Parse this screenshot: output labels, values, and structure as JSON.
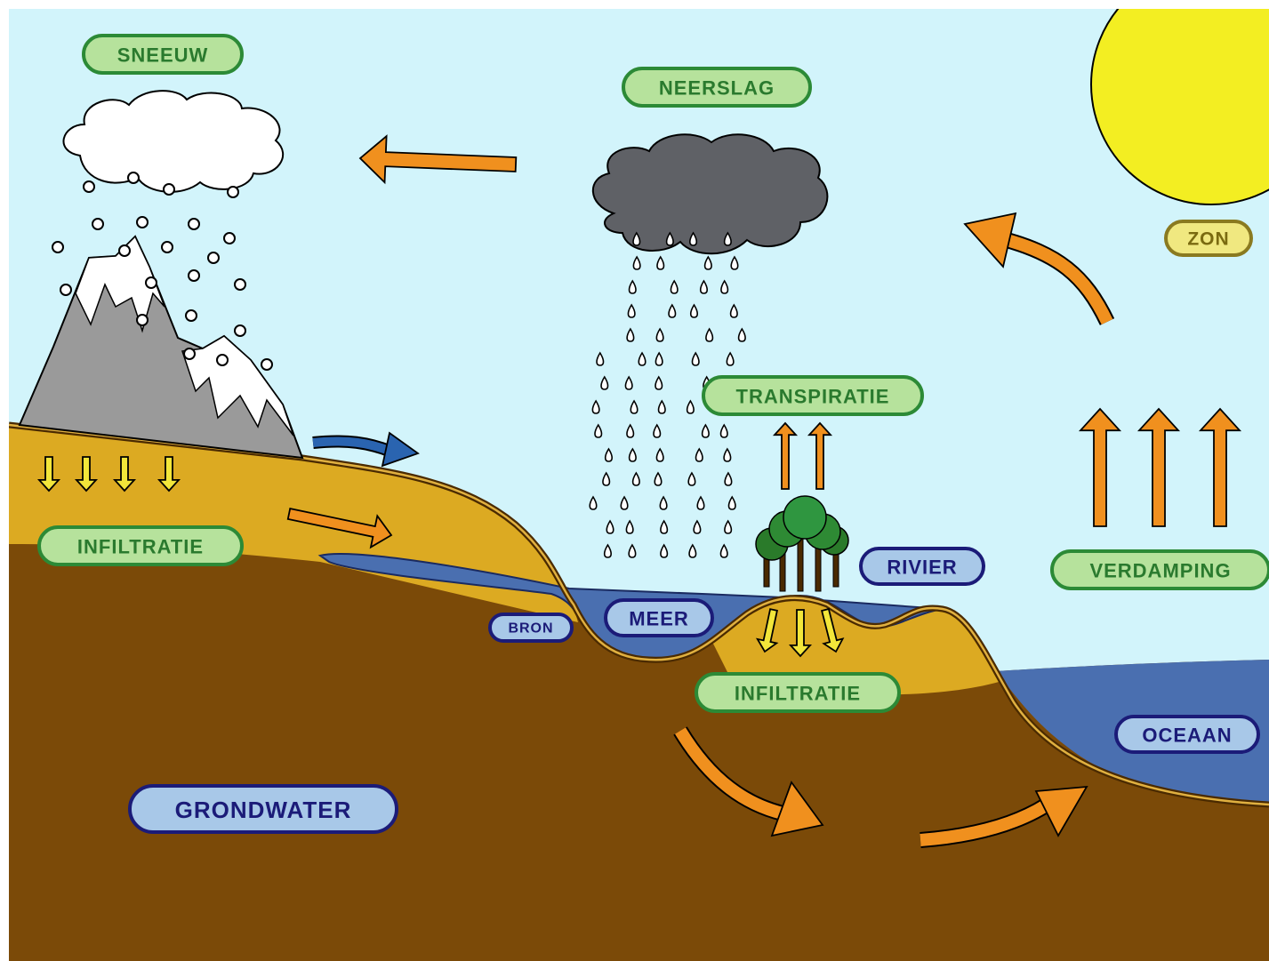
{
  "labels": [
    "SNEEUW",
    "NEERSLAG",
    "ZON",
    "TRANSPIRATIE",
    "INFILTRATIE",
    "RIVIER",
    "VERDAMPING",
    "BRON",
    "MEER",
    "INFILTRATIE",
    "OCEAAN",
    "GRONDWATER"
  ]
}
